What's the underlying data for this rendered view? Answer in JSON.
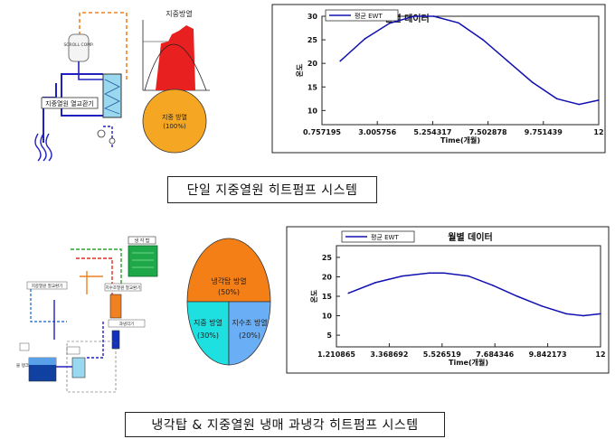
{
  "top": {
    "schematic": {
      "compressor_label": "SCROLL COMP.",
      "hx_label": "지중열원 열교환기"
    },
    "rejection_chart": {
      "title": "지중방열"
    },
    "pie": {
      "label": "지중 방열",
      "percent": "(100%)",
      "color": "#f5a623"
    },
    "caption": "단일 지중열원 히트펌프 시스템"
  },
  "bottom": {
    "schematic": {
      "tower_label": "냉 각 탑",
      "hx_label": "지중열원 열교환기",
      "gh_label": "지수조열원 열교환기",
      "subcooler_label": "과냉각기",
      "tank_label": "물 탱크"
    },
    "pie": {
      "slices": [
        {
          "label": "냉각탑 방열",
          "percent": "(50%)",
          "color": "#f57f17"
        },
        {
          "label": "지중 방열",
          "percent": "(30%)",
          "color": "#1ee0e0"
        },
        {
          "label": "지수조 방열",
          "percent": "(20%)",
          "color": "#6aaef5"
        }
      ]
    },
    "caption": "냉각탑 & 지중열원 냉매 과냉각 히트펌프 시스템"
  },
  "chart_data": [
    {
      "type": "line",
      "title": "월별 데이터",
      "legend": "평균 EWT",
      "xlabel": "Time(개월)",
      "ylabel": "온도",
      "x_ticks": [
        "0.757195",
        "3.005756",
        "5.254317",
        "7.502878",
        "9.751439",
        "12"
      ],
      "y_ticks": [
        "10",
        "15",
        "20",
        "25",
        "30"
      ],
      "xlim": [
        0.757195,
        12
      ],
      "ylim": [
        7,
        30
      ],
      "series": [
        {
          "name": "평균 EWT",
          "color": "#1010b0",
          "x": [
            1.5,
            2.5,
            3.5,
            4.5,
            5.3,
            6.3,
            7.3,
            8.3,
            9.3,
            10.3,
            11.2,
            12
          ],
          "y": [
            20.5,
            25.2,
            28.5,
            30.0,
            30.0,
            28.6,
            25.0,
            20.5,
            16.0,
            12.5,
            11.3,
            12.2
          ]
        }
      ]
    },
    {
      "type": "line",
      "title": "월별 데이터",
      "legend": "평균 EWT",
      "xlabel": "Time(개월)",
      "ylabel": "온도",
      "x_ticks": [
        "1.210865",
        "3.368692",
        "5.526519",
        "7.684346",
        "9.842173",
        "12"
      ],
      "y_ticks": [
        "5",
        "10",
        "15",
        "20",
        "25"
      ],
      "xlim": [
        1.210865,
        12
      ],
      "ylim": [
        2,
        28
      ],
      "series": [
        {
          "name": "평균 EWT",
          "color": "#1010b0",
          "x": [
            1.7,
            2.8,
            3.9,
            5.0,
            5.6,
            6.6,
            7.6,
            8.6,
            9.6,
            10.6,
            11.3,
            12
          ],
          "y": [
            15.8,
            18.5,
            20.2,
            21.0,
            21.0,
            20.2,
            17.8,
            15.0,
            12.5,
            10.5,
            10.0,
            10.5
          ]
        }
      ]
    }
  ]
}
